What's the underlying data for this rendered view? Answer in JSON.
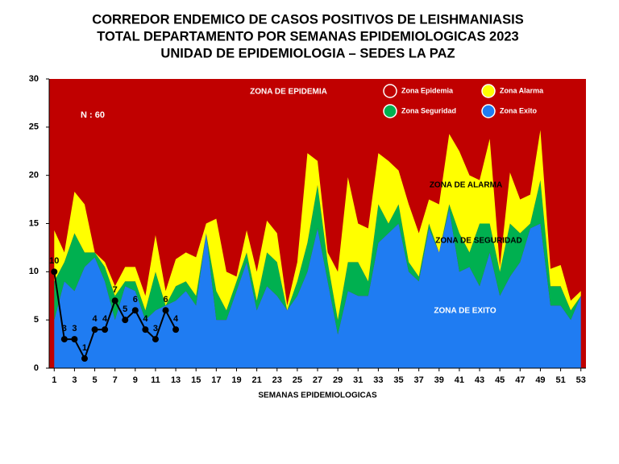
{
  "chart_data": {
    "type": "stacked-area",
    "title": [
      "CORREDOR ENDEMICO DE CASOS POSITIVOS DE LEISHMANIASIS",
      "TOTAL DEPARTAMENTO  POR SEMANAS EPIDEMIOLOGICAS 2023",
      "UNIDAD DE EPIDEMIOLOGIA – SEDES LA PAZ"
    ],
    "xlabel": "SEMANAS EPIDEMIOLOGICAS",
    "annotations": [
      "ZONA DE EPIDEMIA",
      "ZONA DE ALARMA",
      "ZONA DE  SEGURIDAD",
      "ZONA DE  EXITO",
      "N : 60"
    ],
    "x": [
      1,
      2,
      3,
      4,
      5,
      6,
      7,
      8,
      9,
      10,
      11,
      12,
      13,
      14,
      15,
      16,
      17,
      18,
      19,
      20,
      21,
      22,
      23,
      24,
      25,
      26,
      27,
      28,
      29,
      30,
      31,
      32,
      33,
      34,
      35,
      36,
      37,
      38,
      39,
      40,
      41,
      42,
      43,
      44,
      45,
      46,
      47,
      48,
      49,
      50,
      51,
      52,
      53
    ],
    "xlim": [
      0.5,
      53.5
    ],
    "xticks": [
      1,
      3,
      5,
      7,
      9,
      11,
      13,
      15,
      17,
      19,
      21,
      23,
      25,
      27,
      29,
      31,
      33,
      35,
      37,
      39,
      41,
      43,
      45,
      47,
      49,
      51,
      53
    ],
    "ylim": [
      0,
      30
    ],
    "yticks": [
      0,
      5,
      10,
      15,
      20,
      25,
      30
    ],
    "epidemia": {
      "name": "Zona Epidemia",
      "color": "#c00000"
    },
    "series": [
      {
        "name": "Zona Exito",
        "color": "#1f7cf2",
        "values": [
          5,
          9,
          8,
          10.5,
          11.5,
          9,
          5,
          8.5,
          8,
          5,
          6,
          6.5,
          7,
          8,
          6.5,
          14,
          5,
          5,
          8,
          11,
          6,
          8.5,
          7.5,
          6,
          7.5,
          10,
          14.5,
          9,
          3.5,
          8,
          7.5,
          7.5,
          13,
          14,
          15,
          10,
          9,
          14.5,
          12,
          16.5,
          10,
          10.5,
          8.5,
          12,
          7.5,
          9.5,
          11,
          14.5,
          15,
          6.5,
          6.5,
          5,
          7.5
        ]
      },
      {
        "name": "Zona Seguridad",
        "color": "#00b050",
        "values": [
          4,
          2,
          6,
          1.5,
          0.5,
          1.5,
          2.5,
          0.5,
          1,
          1,
          4,
          0,
          1.5,
          1,
          1,
          0,
          3,
          1,
          1,
          1,
          1,
          3.5,
          3.5,
          0,
          1.5,
          3,
          4.5,
          2,
          1.5,
          3,
          3.5,
          1.5,
          4,
          1,
          2,
          1,
          0.5,
          0.5,
          0,
          0.5,
          4,
          1.5,
          6.5,
          3,
          2.5,
          5.5,
          3,
          0.5,
          4.5,
          2,
          2,
          1,
          0
        ]
      },
      {
        "name": "Zona Alarma",
        "color": "#ffff00",
        "values": [
          5.3,
          1,
          4.3,
          5,
          0,
          0.5,
          1,
          1.5,
          1.5,
          1.5,
          3.8,
          1.5,
          2.8,
          3,
          4,
          1,
          7.5,
          4,
          0.5,
          2.3,
          3,
          3.3,
          3,
          0.5,
          2,
          9.3,
          2.5,
          1,
          5,
          8.8,
          4,
          5.5,
          5.3,
          6.5,
          3.5,
          6,
          4.5,
          2.5,
          5,
          7.3,
          8.5,
          8,
          4.5,
          8.8,
          0.5,
          5.3,
          3.5,
          3,
          5.2,
          1.8,
          2.2,
          1,
          0.5
        ]
      }
    ],
    "cases": [
      10,
      3,
      3,
      1,
      4,
      4,
      7,
      5,
      6,
      4,
      3,
      6,
      4,
      null,
      null,
      null,
      null,
      null,
      null,
      null,
      null,
      null,
      null,
      null,
      null,
      null,
      null,
      null,
      null,
      null,
      null,
      null,
      null,
      null,
      null,
      null,
      null,
      null,
      null,
      null,
      null,
      null,
      null,
      null,
      null,
      null,
      null,
      null,
      null,
      null,
      null,
      null,
      null
    ],
    "cases_color": "#000000"
  }
}
